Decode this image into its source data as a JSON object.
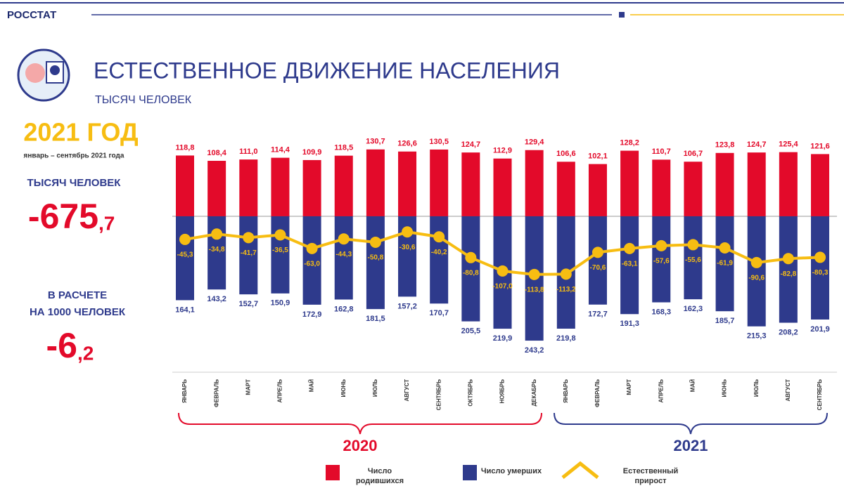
{
  "header": {
    "agency": "РОССТАТ",
    "title": "ЕСТЕСТВЕННОЕ ДВИЖЕНИЕ НАСЕЛЕНИЯ",
    "subtitle": "ТЫСЯЧ ЧЕЛОВЕК"
  },
  "summary": {
    "year": "2021 ГОД",
    "period": "январь – сентябрь 2021 года",
    "unit": "ТЫСЯЧ ЧЕЛОВЕК",
    "total_int": "-675",
    "total_frac": ",7",
    "rate_label_1": "В РАСЧЕТЕ",
    "rate_label_2": "НА 1000 ЧЕЛОВЕК",
    "rate_int": "-6",
    "rate_frac": ",2"
  },
  "years": [
    "2020",
    "2021"
  ],
  "chart_data": {
    "type": "bar",
    "categories": [
      "ЯНВАРЬ",
      "ФЕВРАЛЬ",
      "МАРТ",
      "АПРЕЛЬ",
      "МАЙ",
      "ИЮНЬ",
      "ИЮЛЬ",
      "АВГУСТ",
      "СЕНТЯБРЬ",
      "ОКТЯБРЬ",
      "НОЯБРЬ",
      "ДЕКАБРЬ",
      "ЯНВАРЬ",
      "ФЕВРАЛЬ",
      "МАРТ",
      "АПРЕЛЬ",
      "МАЙ",
      "ИЮНЬ",
      "ИЮЛЬ",
      "АВГУСТ",
      "СЕНТЯБРЬ"
    ],
    "ylim": [
      -250,
      140
    ],
    "series": [
      {
        "name": "Число родившихся",
        "color": "#e30a2a",
        "values": [
          118.8,
          108.4,
          111.0,
          114.4,
          109.9,
          118.5,
          130.7,
          126.6,
          130.5,
          124.7,
          112.9,
          129.4,
          106.6,
          102.1,
          128.2,
          110.7,
          106.7,
          123.8,
          124.7,
          125.4,
          121.6
        ],
        "value_labels": [
          "118,8",
          "108,4",
          "111,0",
          "114,4",
          "109,9",
          "118,5",
          "130,7",
          "126,6",
          "130,5",
          "124,7",
          "112,9",
          "129,4",
          "106,6",
          "102,1",
          "128,2",
          "110,7",
          "106,7",
          "123,8",
          "124,7",
          "125,4",
          "121,6"
        ]
      },
      {
        "name": "Число умерших",
        "color": "#2e3a8c",
        "values": [
          164.1,
          143.2,
          152.7,
          150.9,
          172.9,
          162.8,
          181.5,
          157.2,
          170.7,
          205.5,
          219.9,
          243.2,
          219.8,
          172.7,
          191.3,
          168.3,
          162.3,
          185.7,
          215.3,
          208.2,
          201.9
        ],
        "value_labels": [
          "164,1",
          "143,2",
          "152,7",
          "150,9",
          "172,9",
          "162,8",
          "181,5",
          "157,2",
          "170,7",
          "205,5",
          "219,9",
          "243,2",
          "219,8",
          "172,7",
          "191,3",
          "168,3",
          "162,3",
          "185,7",
          "215,3",
          "208,2",
          "201,9"
        ]
      },
      {
        "name": "Естественный прирост",
        "color": "#f7bd12",
        "values": [
          -45.3,
          -34.8,
          -41.7,
          -36.5,
          -63.0,
          -44.3,
          -50.8,
          -30.6,
          -40.2,
          -80.8,
          -107.0,
          -113.8,
          -113.2,
          -70.6,
          -63.1,
          -57.6,
          -55.6,
          -61.9,
          -90.6,
          -82.8,
          -80.3
        ],
        "value_labels": [
          "-45,3",
          "-34,8",
          "-41,7",
          "-36,5",
          "-63,0",
          "-44,3",
          "-50,8",
          "-30,6",
          "-40,2",
          "-80,8",
          "-107,0",
          "-113,8",
          "-113,2",
          "-70,6",
          "-63,1",
          "-57,6",
          "-55,6",
          "-61,9",
          "-90,6",
          "-82,8",
          "-80,3"
        ]
      }
    ]
  }
}
